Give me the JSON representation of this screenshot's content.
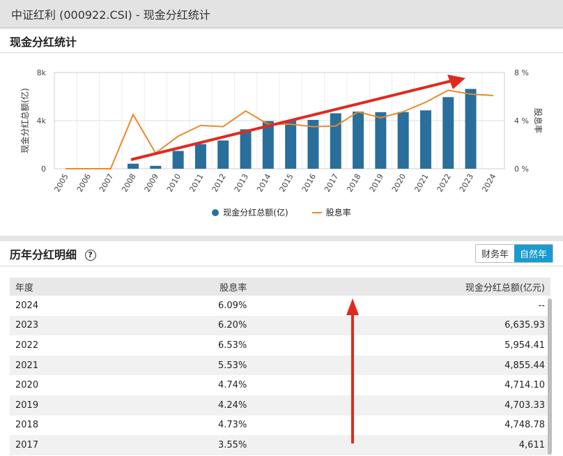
{
  "titlebar": {
    "title": "中证红利 (000922.CSI) - 现金分红统计"
  },
  "section1": {
    "title": "现金分红统计"
  },
  "section2": {
    "title": "历年分红明细",
    "help": "?",
    "toggle": [
      "财务年",
      "自然年"
    ],
    "active_toggle": "自然年"
  },
  "table": {
    "headers": [
      "年度",
      "股息率",
      "现金分红总额(亿元)"
    ],
    "rows": [
      [
        "2024",
        "6.09%",
        "--"
      ],
      [
        "2023",
        "6.20%",
        "6,635.93"
      ],
      [
        "2022",
        "6.53%",
        "5,954.41"
      ],
      [
        "2021",
        "5.53%",
        "4,855.44"
      ],
      [
        "2020",
        "4.74%",
        "4,714.10"
      ],
      [
        "2019",
        "4.24%",
        "4,703.33"
      ],
      [
        "2018",
        "4.73%",
        "4,748.78"
      ],
      [
        "2017",
        "3.55%",
        "4,611"
      ]
    ]
  },
  "colors": {
    "bar": "#2a6f9b",
    "line": "#e8892b",
    "arrow": "#e02a20",
    "active_toggle": "#1a9bd0"
  },
  "chart_data": {
    "type": "bar",
    "categories": [
      "2005",
      "2006",
      "2007",
      "2008",
      "2009",
      "2010",
      "2011",
      "2012",
      "2013",
      "2014",
      "2015",
      "2016",
      "2017",
      "2018",
      "2019",
      "2020",
      "2021",
      "2022",
      "2023",
      "2024"
    ],
    "series": [
      {
        "name": "现金分红总额(亿)",
        "type": "bar",
        "axis": "left",
        "values": [
          0,
          0,
          0,
          420,
          240,
          1480,
          2050,
          2350,
          3280,
          3960,
          4030,
          4060,
          4611,
          4748.78,
          4703.33,
          4714.1,
          4855.44,
          5954.41,
          6635.93,
          null
        ]
      },
      {
        "name": "股息率",
        "type": "line",
        "axis": "right",
        "values": [
          0,
          0,
          0,
          4.5,
          1.3,
          2.7,
          3.6,
          3.5,
          4.8,
          3.7,
          3.7,
          3.5,
          3.55,
          4.73,
          4.24,
          4.74,
          5.53,
          6.53,
          6.2,
          6.09
        ]
      }
    ],
    "ylabel": "现金分红总额(亿)",
    "y2label": "股息率",
    "ylim": [
      0,
      8000
    ],
    "y2lim": [
      0,
      8
    ],
    "yticks": [
      "0",
      "4k",
      "8k"
    ],
    "y2ticks": [
      "0 %",
      "4 %",
      "8 %"
    ],
    "grid": true,
    "legend_position": "bottom-center"
  }
}
